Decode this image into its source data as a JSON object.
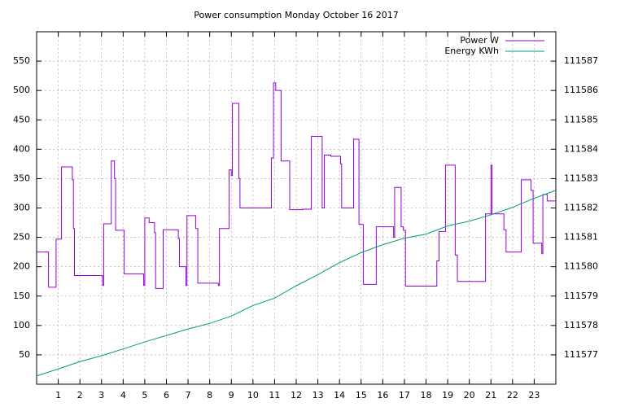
{
  "chart_data": {
    "type": "line",
    "title": "Power consumption Monday October 16 2017",
    "xlim": [
      0,
      24
    ],
    "xticks": [
      1,
      2,
      3,
      4,
      5,
      6,
      7,
      8,
      9,
      10,
      11,
      12,
      13,
      14,
      15,
      16,
      17,
      18,
      19,
      20,
      21,
      22,
      23
    ],
    "ylim": [
      0,
      600
    ],
    "yticks": [
      50,
      100,
      150,
      200,
      250,
      300,
      350,
      400,
      450,
      500,
      550
    ],
    "y2lim": [
      111576,
      111588
    ],
    "y2ticks": [
      111577,
      111578,
      111579,
      111580,
      111581,
      111582,
      111583,
      111584,
      111585,
      111586,
      111587
    ],
    "grid": true,
    "legend": "top-right",
    "series": [
      {
        "name": "Power W",
        "color": "#9400d3",
        "x": [
          0,
          0.55,
          0.55,
          0.9,
          0.9,
          1.15,
          1.15,
          1.65,
          1.65,
          1.7,
          1.7,
          1.75,
          1.75,
          3.05,
          3.05,
          3.1,
          3.1,
          3.45,
          3.45,
          3.6,
          3.6,
          3.65,
          3.65,
          4.05,
          4.05,
          4.95,
          4.95,
          5,
          5,
          5.2,
          5.2,
          5.45,
          5.45,
          5.5,
          5.5,
          5.85,
          5.85,
          6.55,
          6.55,
          6.6,
          6.6,
          6.9,
          6.9,
          6.95,
          6.95,
          7.35,
          7.35,
          7.45,
          7.45,
          8.4,
          8.4,
          8.45,
          8.45,
          8.9,
          8.9,
          9,
          9,
          9.05,
          9.05,
          9.35,
          9.35,
          9.4,
          9.4,
          10.85,
          10.85,
          10.95,
          10.95,
          11.05,
          11.05,
          11.3,
          11.3,
          11.7,
          11.7,
          12.3,
          12.3,
          12.7,
          12.7,
          13.2,
          13.2,
          13.3,
          13.3,
          13.6,
          13.6,
          14.05,
          14.05,
          14.1,
          14.1,
          14.65,
          14.65,
          14.9,
          14.9,
          15.1,
          15.1,
          15.7,
          15.7,
          16.5,
          16.5,
          16.55,
          16.55,
          16.85,
          16.85,
          16.95,
          16.95,
          17.05,
          17.05,
          18.5,
          18.5,
          18.6,
          18.6,
          18.9,
          18.9,
          19.35,
          19.35,
          19.45,
          19.45,
          20.75,
          20.75,
          21,
          21,
          21.05,
          21.05,
          21.6,
          21.6,
          21.7,
          21.7,
          22.4,
          22.4,
          22.85,
          22.85,
          22.95,
          22.95,
          23.35,
          23.35,
          23.4,
          23.4,
          23.6,
          23.6,
          24
        ],
        "values": [
          225,
          225,
          165,
          165,
          247,
          247,
          370,
          370,
          348,
          348,
          265,
          265,
          185,
          185,
          168,
          168,
          273,
          273,
          380,
          380,
          350,
          350,
          262,
          262,
          188,
          188,
          168,
          168,
          283,
          283,
          275,
          275,
          258,
          258,
          163,
          163,
          263,
          263,
          248,
          248,
          200,
          200,
          168,
          168,
          287,
          287,
          265,
          265,
          172,
          172,
          168,
          168,
          265,
          265,
          365,
          365,
          355,
          355,
          478,
          478,
          350,
          350,
          300,
          300,
          385,
          385,
          513,
          513,
          500,
          500,
          380,
          380,
          297,
          297,
          298,
          298,
          422,
          422,
          300,
          300,
          390,
          390,
          388,
          388,
          375,
          375,
          300,
          300,
          417,
          417,
          272,
          272,
          170,
          170,
          268,
          268,
          250,
          250,
          335,
          335,
          268,
          268,
          262,
          262,
          167,
          167,
          210,
          210,
          260,
          260,
          373,
          373,
          220,
          220,
          175,
          175,
          290,
          290,
          373,
          373,
          290,
          290,
          263,
          263,
          225,
          225,
          348,
          348,
          330,
          330,
          240,
          240,
          222,
          222,
          323,
          323,
          312,
          312
        ]
      },
      {
        "name": "Energy KWh",
        "color": "#009e73",
        "axis": "y2",
        "x": [
          0,
          1,
          2,
          3,
          4,
          5,
          6,
          7,
          8,
          9,
          10,
          11,
          12,
          13,
          14,
          15,
          16,
          17,
          18,
          19,
          20,
          21,
          22,
          23,
          24
        ],
        "values": [
          111576.28,
          111576.52,
          111576.77,
          111576.97,
          111577.2,
          111577.44,
          111577.66,
          111577.88,
          111578.07,
          111578.32,
          111578.68,
          111578.93,
          111579.35,
          111579.73,
          111580.14,
          111580.48,
          111580.75,
          111580.97,
          111581.11,
          111581.39,
          111581.55,
          111581.77,
          111582.02,
          111582.33,
          111582.6
        ]
      }
    ]
  }
}
